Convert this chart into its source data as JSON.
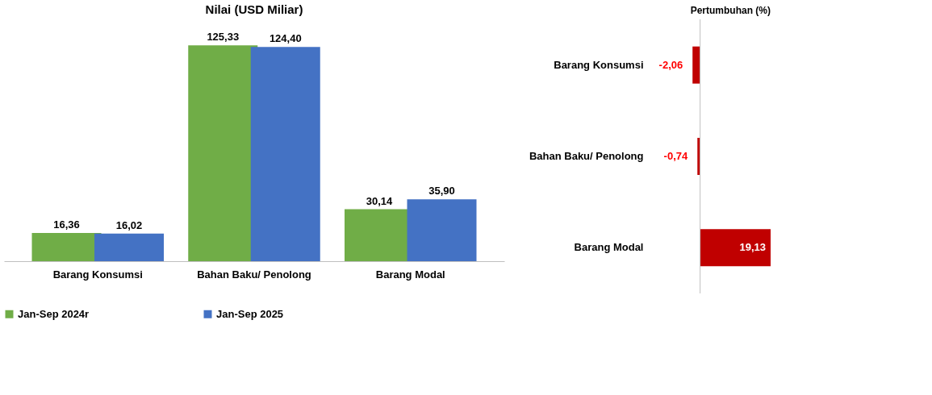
{
  "chart_data": [
    {
      "type": "bar",
      "title": "Nilai (USD Miliar)",
      "categories": [
        "Barang Konsumsi",
        "Bahan Baku/ Penolong",
        "Barang Modal"
      ],
      "series": [
        {
          "name": "Jan-Sep 2024r",
          "color": "#70ad47",
          "values": [
            16.36,
            125.33,
            30.14
          ],
          "value_labels": [
            "16,36",
            "125,33",
            "30,14"
          ]
        },
        {
          "name": "Jan-Sep 2025",
          "color": "#4472c4",
          "values": [
            16.02,
            124.4,
            35.9
          ],
          "value_labels": [
            "16,02",
            "124,40",
            "35,90"
          ]
        }
      ],
      "legend": "bottom"
    },
    {
      "type": "bar",
      "orientation": "horizontal",
      "title": "Pertumbuhan (%)",
      "categories": [
        "Barang Konsumsi",
        "Bahan Baku/ Penolong",
        "Barang Modal"
      ],
      "series": [
        {
          "color": "#c00000",
          "values": [
            -2.06,
            -0.74,
            19.13
          ],
          "value_labels": [
            "-2,06",
            "-0,74",
            "19,13"
          ]
        }
      ]
    }
  ]
}
